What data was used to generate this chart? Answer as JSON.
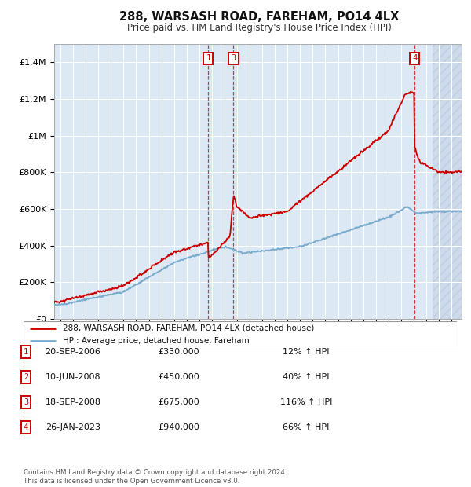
{
  "title": "288, WARSASH ROAD, FAREHAM, PO14 4LX",
  "subtitle": "Price paid vs. HM Land Registry's House Price Index (HPI)",
  "ylim": [
    0,
    1500000
  ],
  "xlim_start": 1994.5,
  "xlim_end": 2026.8,
  "background_color": "#dce9f5",
  "grid_color": "#ffffff",
  "red_color": "#cc0000",
  "blue_color": "#7aaacc",
  "hatch_color": "#b0c0d8",
  "hatch_start": 2024.5,
  "purchases": [
    {
      "num": "1",
      "date_val": 2006.72,
      "price": 330000
    },
    {
      "num": "2",
      "date_val": 2008.44,
      "price": 450000
    },
    {
      "num": "3",
      "date_val": 2008.72,
      "price": 675000
    },
    {
      "num": "4",
      "date_val": 2023.07,
      "price": 940000
    }
  ],
  "show_vline": [
    1,
    3,
    4
  ],
  "table_data": [
    {
      "num": "1",
      "date": "20-SEP-2006",
      "price": "£330,000",
      "change": "12% ↑ HPI"
    },
    {
      "num": "2",
      "date": "10-JUN-2008",
      "price": "£450,000",
      "change": "40% ↑ HPI"
    },
    {
      "num": "3",
      "date": "18-SEP-2008",
      "price": "£675,000",
      "change": "116% ↑ HPI"
    },
    {
      "num": "4",
      "date": "26-JAN-2023",
      "price": "£940,000",
      "change": "66% ↑ HPI"
    }
  ],
  "footer": "Contains HM Land Registry data © Crown copyright and database right 2024.\nThis data is licensed under the Open Government Licence v3.0.",
  "legend_red": "288, WARSASH ROAD, FAREHAM, PO14 4LX (detached house)",
  "legend_blue": "HPI: Average price, detached house, Fareham",
  "yticks": [
    0,
    200000,
    400000,
    600000,
    800000,
    1000000,
    1200000,
    1400000
  ],
  "ytick_labels": [
    "£0",
    "£200K",
    "£400K",
    "£600K",
    "£800K",
    "£1M",
    "£1.2M",
    "£1.4M"
  ],
  "xtick_start": 1995,
  "xtick_end": 2027
}
